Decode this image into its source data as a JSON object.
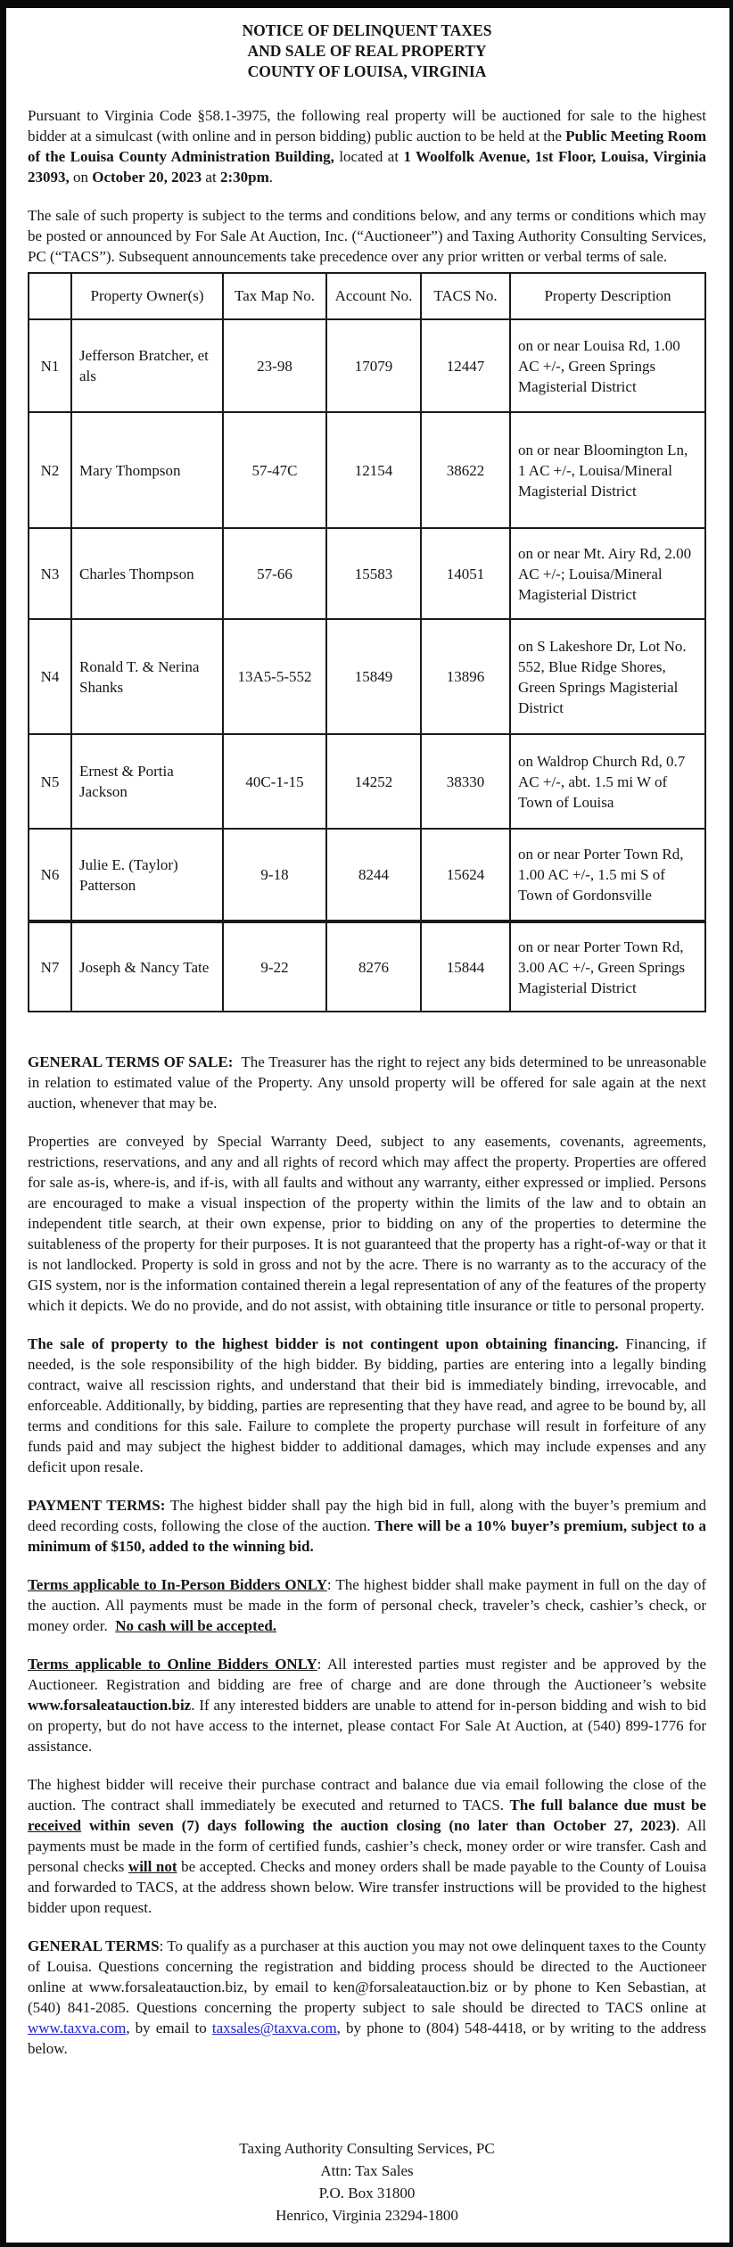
{
  "document": {
    "link_color": "#2222cc",
    "title_lines": [
      "NOTICE OF DELINQUENT TAXES",
      "AND SALE OF REAL PROPERTY",
      "COUNTY OF LOUISA, VIRGINIA"
    ],
    "intro_paragraphs": [
      {
        "name": "paragraph-auction-notice",
        "runs": [
          {
            "t": "Pursuant to Virginia Code §58.1-3975, the following real property will be auctioned for sale to the highest bidder at a simulcast (with online and in person bidding) public auction to be held at the "
          },
          {
            "t": "Public Meeting Room of the Louisa County Administration Building,",
            "b": true
          },
          {
            "t": " located at "
          },
          {
            "t": "1 Woolfolk Avenue, 1st Floor, Louisa, Virginia 23093,",
            "b": true
          },
          {
            "t": " on "
          },
          {
            "t": "October 20, 2023",
            "b": true
          },
          {
            "t": " at "
          },
          {
            "t": "2:30pm",
            "b": true
          },
          {
            "t": "."
          }
        ]
      },
      {
        "name": "paragraph-terms-precedence",
        "runs": [
          {
            "t": "The sale of such property is subject to the terms and conditions below, and any terms or conditions which may be posted or announced by For Sale At Auction, Inc. (“Auctioneer”) and Taxing Authority Consulting Services, PC (“TACS”). Subsequent announcements take precedence over any prior written or verbal terms of sale."
          }
        ]
      }
    ],
    "property_table": {
      "headers": [
        "",
        "Property Owner(s)",
        "Tax Map No.",
        "Account No.",
        "TACS No.",
        "Property Description"
      ],
      "rows": [
        {
          "item": "N1",
          "owner": "Jefferson Bratcher, et als",
          "tax_map": "23-98",
          "account": "17079",
          "tacs": "12447",
          "description": "on or near Louisa Rd, 1.00 AC +/-, Green Springs Magisterial District"
        },
        {
          "item": "N2",
          "owner": "Mary Thompson",
          "tax_map": "57-47C",
          "account": "12154",
          "tacs": "38622",
          "description": "on or near Bloomington Ln, 1 AC +/-, Louisa/Mineral Magisterial District"
        },
        {
          "item": "N3",
          "owner": "Charles Thompson",
          "tax_map": "57-66",
          "account": "15583",
          "tacs": "14051",
          "description": "on or near Mt. Airy Rd, 2.00 AC +/-; Louisa/Mineral Magisterial District"
        },
        {
          "item": "N4",
          "owner": "Ronald T. & Nerina Shanks",
          "tax_map": "13A5-5-552",
          "account": "15849",
          "tacs": "13896",
          "description": "on S Lakeshore Dr, Lot No. 552, Blue Ridge Shores, Green Springs Magisterial District"
        },
        {
          "item": "N5",
          "owner": "Ernest & Portia Jackson",
          "tax_map": "40C-1-15",
          "account": "14252",
          "tacs": "38330",
          "description": "on Waldrop Church Rd, 0.7 AC +/-, abt. 1.5 mi W of Town of Louisa"
        },
        {
          "item": "N6",
          "owner": "Julie E. (Taylor) Patterson",
          "tax_map": "9-18",
          "account": "8244",
          "tacs": "15624",
          "description": "on or near Porter Town Rd, 1.00 AC +/-, 1.5 mi S of Town of Gordonsville"
        },
        {
          "item": "N7",
          "owner": "Joseph & Nancy Tate",
          "tax_map": "9-22",
          "account": "8276",
          "tacs": "15844",
          "description": "on or near Porter Town Rd, 3.00 AC +/-, Green Springs Magisterial District"
        }
      ]
    },
    "terms_paragraphs": [
      {
        "name": "paragraph-general-terms-of-sale",
        "runs": [
          {
            "t": "GENERAL TERMS OF SALE:",
            "b": true
          },
          {
            "t": "  The Treasurer has the right to reject any bids determined to be unreasonable in relation to estimated value of the Property. Any unsold property will be offered for sale again at the next auction, whenever that may be."
          }
        ]
      },
      {
        "name": "paragraph-special-warranty-deed",
        "runs": [
          {
            "t": "Properties are conveyed by Special Warranty Deed, subject to any easements, covenants, agreements, restrictions, reservations, and any and all rights of record which may affect the property. Properties are offered for sale as-is, where-is, and if-is, with all faults and without any warranty, either expressed or implied. Persons are encouraged to make a visual inspection of the property within the limits of the law and to obtain an independent title search, at their own expense, prior to bidding on any of the properties to determine the suitableness of the property for their purposes. It is not guaranteed that the property has a right-of-way or that it is not landlocked. Property is sold in gross and not by the acre. There is no warranty as to the accuracy of the GIS system, nor is the information contained therein a legal representation of any of the features of the property which it depicts. We do no provide, and do not assist, with obtaining title insurance or title to personal property."
          }
        ]
      },
      {
        "name": "paragraph-financing",
        "runs": [
          {
            "t": "The sale of property to the highest bidder is not contingent upon obtaining financing.",
            "b": true
          },
          {
            "t": " Financing, if needed, is the sole responsibility of the high bidder. By bidding, parties are entering into a legally binding contract, waive all rescission rights, and understand that their bid is immediately binding, irrevocable, and enforceable. Additionally, by bidding, parties are representing that they have read, and agree to be bound by, all terms and conditions for this sale. Failure to complete the property purchase will result in forfeiture of any funds paid and may subject the highest bidder to additional damages, which may include expenses and any deficit upon resale."
          }
        ]
      },
      {
        "name": "paragraph-payment-terms",
        "runs": [
          {
            "t": "PAYMENT TERMS:",
            "b": true
          },
          {
            "t": " The highest bidder shall pay the high bid in full, along with the buyer’s premium and deed recording costs, following the close of the auction. "
          },
          {
            "t": "There will be a 10% buyer’s premium, subject to a minimum of $150, added to the winning bid.",
            "b": true
          }
        ]
      },
      {
        "name": "paragraph-in-person-bidders",
        "runs": [
          {
            "t": "Terms applicable to In-Person Bidders ONLY",
            "b": true,
            "u": true
          },
          {
            "t": ": The highest bidder shall make payment in full on the day of the auction. All payments must be made in the form of personal check, traveler’s check, cashier’s check, or money order.  "
          },
          {
            "t": "No cash will be accepted.",
            "b": true,
            "u": true
          }
        ]
      },
      {
        "name": "paragraph-online-bidders",
        "runs": [
          {
            "t": "Terms applicable to Online Bidders ONLY",
            "b": true,
            "u": true
          },
          {
            "t": ": All interested parties must register and be approved by the Auctioneer. Registration and bidding are free of charge and are done through the Auctioneer’s website "
          },
          {
            "t": "www.forsaleatauction.biz",
            "b": true
          },
          {
            "t": ". If any interested bidders are unable to attend for in-person bidding and wish to bid on property, but do not have access to the internet, please contact For Sale At Auction, at (540) 899-1776 for assistance."
          }
        ]
      },
      {
        "name": "paragraph-balance-due",
        "runs": [
          {
            "t": "The highest bidder will receive their purchase contract and balance due via email following the close of the auction. The contract shall immediately be executed and returned to TACS. "
          },
          {
            "t": "The full balance due must be ",
            "b": true
          },
          {
            "t": "received",
            "b": true,
            "u": true
          },
          {
            "t": " within seven (7) days following the auction closing (no later than October 27, 2023)",
            "b": true
          },
          {
            "t": ". All payments must be made in the form of certified funds, cashier’s check, money order or wire transfer. Cash and personal checks "
          },
          {
            "t": "will not",
            "b": true,
            "u": true
          },
          {
            "t": " be accepted. Checks and money orders shall be made payable to the County of Louisa and forwarded to TACS, at the address shown below. Wire transfer instructions will be provided to the highest bidder upon request."
          }
        ]
      },
      {
        "name": "paragraph-general-terms",
        "runs": [
          {
            "t": "GENERAL TERMS",
            "b": true
          },
          {
            "t": ": To qualify as a purchaser at this auction you may not owe delinquent taxes to the County of Louisa. Questions concerning the registration and bidding process should be directed to the Auctioneer online at www.forsaleatauction.biz, by email to ken@forsaleatauction.biz or by phone to Ken Sebastian, at (540) 841-2085. Questions concerning the property subject to sale should be directed to TACS online at "
          },
          {
            "t": "www.taxva.com",
            "link": true,
            "name": "taxva-website-link"
          },
          {
            "t": ", by email to "
          },
          {
            "t": "taxsales@taxva.com",
            "link": true,
            "name": "taxsales-email-link"
          },
          {
            "t": ", by phone to (804) 548-4418, or by writing to the address below."
          }
        ]
      }
    ],
    "footer_address_lines": [
      "Taxing Authority Consulting Services, PC",
      "Attn: Tax Sales",
      "P.O. Box 31800",
      "Henrico, Virginia 23294-1800"
    ]
  }
}
